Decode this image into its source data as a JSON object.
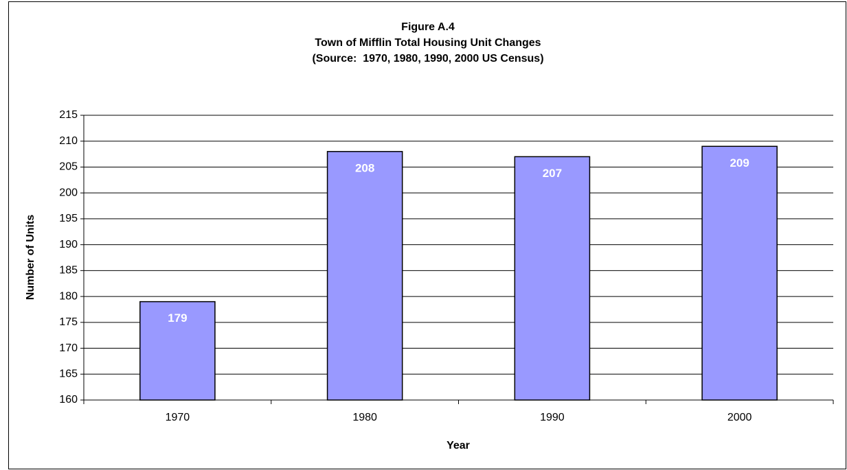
{
  "chart_data": {
    "type": "bar",
    "title": [
      "Figure A.4",
      "Town of Mifflin Total Housing Unit Changes",
      "(Source:  1970, 1980, 1990, 2000 US Census)"
    ],
    "x_label": "Year",
    "y_label": "Number of Units",
    "categories": [
      "1970",
      "1980",
      "1990",
      "2000"
    ],
    "values": [
      179,
      208,
      207,
      209
    ],
    "color": "#9999ff",
    "ylim": [
      160,
      215
    ],
    "yticks": [
      160,
      165,
      170,
      175,
      180,
      185,
      190,
      195,
      200,
      205,
      210,
      215
    ],
    "grid": true
  }
}
